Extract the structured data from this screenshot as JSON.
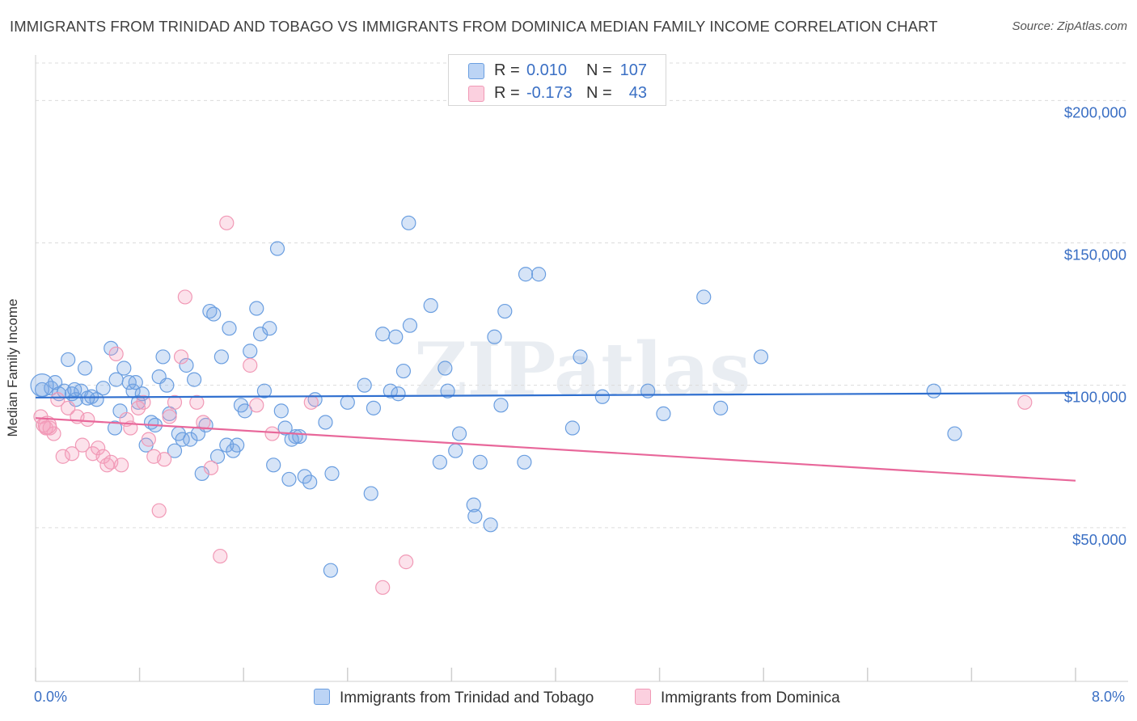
{
  "title": "IMMIGRANTS FROM TRINIDAD AND TOBAGO VS IMMIGRANTS FROM DOMINICA MEDIAN FAMILY INCOME CORRELATION CHART",
  "source": "Source: ZipAtlas.com",
  "watermark": "ZIPatlas",
  "legend": {
    "rows": [
      {
        "r_label": "R =",
        "r_value": "0.010",
        "n_label": "N =",
        "n_value": "107"
      },
      {
        "r_label": "R =",
        "r_value": "-0.173",
        "n_label": "N =",
        "n_value": "43"
      }
    ]
  },
  "x_min_label": "0.0%",
  "x_max_label": "8.0%",
  "colors": {
    "blue": "#6a9ee0",
    "blue_line": "#2f6fcf",
    "pink": "#f199b6",
    "pink_line": "#e8679a",
    "tick_text": "#3a6fc4"
  },
  "chart_data": {
    "type": "scatter",
    "xlabel": "",
    "ylabel": "Median Family Income",
    "xlim": [
      0.0,
      8.0
    ],
    "ylim": [
      0,
      210000
    ],
    "y_ticks": [
      50000,
      100000,
      150000,
      200000
    ],
    "y_tick_labels": [
      "$50,000",
      "$100,000",
      "$150,000",
      "$200,000"
    ],
    "grid": "horizontal dashed",
    "legend_position": "bottom",
    "series": [
      {
        "name": "Immigrants from Trinidad and Tobago",
        "color": "#6a9ee0",
        "trend": {
          "x": [
            0.0,
            8.0
          ],
          "y": [
            95700,
            97300
          ]
        },
        "points": [
          [
            0.05,
            98500
          ],
          [
            0.12,
            99000
          ],
          [
            0.15,
            101000
          ],
          [
            0.18,
            97000
          ],
          [
            0.22,
            98000
          ],
          [
            0.25,
            109000
          ],
          [
            0.28,
            97000
          ],
          [
            0.31,
            95000
          ],
          [
            0.35,
            98000
          ],
          [
            0.38,
            106000
          ],
          [
            0.43,
            96000
          ],
          [
            0.47,
            95000
          ],
          [
            0.52,
            99000
          ],
          [
            0.58,
            113000
          ],
          [
            0.61,
            85000
          ],
          [
            0.62,
            102000
          ],
          [
            0.68,
            106000
          ],
          [
            0.72,
            101000
          ],
          [
            0.75,
            98000
          ],
          [
            0.77,
            101000
          ],
          [
            0.79,
            94000
          ],
          [
            0.82,
            97000
          ],
          [
            0.85,
            79000
          ],
          [
            0.89,
            87000
          ],
          [
            0.92,
            86000
          ],
          [
            0.95,
            103000
          ],
          [
            0.98,
            110000
          ],
          [
            1.01,
            100000
          ],
          [
            1.03,
            90000
          ],
          [
            1.07,
            77000
          ],
          [
            1.1,
            83000
          ],
          [
            1.13,
            81000
          ],
          [
            1.16,
            107000
          ],
          [
            1.19,
            81000
          ],
          [
            1.22,
            102000
          ],
          [
            1.25,
            83000
          ],
          [
            1.28,
            69000
          ],
          [
            1.31,
            86000
          ],
          [
            1.34,
            126000
          ],
          [
            1.37,
            125000
          ],
          [
            1.43,
            110000
          ],
          [
            1.47,
            79000
          ],
          [
            1.49,
            120000
          ],
          [
            1.52,
            77000
          ],
          [
            1.55,
            79000
          ],
          [
            1.58,
            93000
          ],
          [
            1.61,
            91000
          ],
          [
            1.65,
            112000
          ],
          [
            1.7,
            127000
          ],
          [
            1.73,
            118000
          ],
          [
            1.76,
            98000
          ],
          [
            1.8,
            120000
          ],
          [
            1.83,
            72000
          ],
          [
            1.86,
            148000
          ],
          [
            1.89,
            91000
          ],
          [
            1.92,
            85000
          ],
          [
            1.95,
            67000
          ],
          [
            2.0,
            82000
          ],
          [
            2.03,
            82000
          ],
          [
            2.07,
            68000
          ],
          [
            2.11,
            66000
          ],
          [
            2.23,
            87000
          ],
          [
            2.27,
            35000
          ],
          [
            2.28,
            69000
          ],
          [
            2.4,
            94000
          ],
          [
            2.53,
            100000
          ],
          [
            2.58,
            62000
          ],
          [
            2.6,
            92000
          ],
          [
            2.67,
            118000
          ],
          [
            2.73,
            98000
          ],
          [
            2.77,
            117000
          ],
          [
            2.79,
            97000
          ],
          [
            2.83,
            105000
          ],
          [
            2.88,
            121000
          ],
          [
            2.87,
            157000
          ],
          [
            3.04,
            128000
          ],
          [
            3.11,
            73000
          ],
          [
            3.15,
            106000
          ],
          [
            3.17,
            98000
          ],
          [
            3.23,
            77000
          ],
          [
            3.26,
            83000
          ],
          [
            3.37,
            58000
          ],
          [
            3.38,
            54000
          ],
          [
            3.42,
            73000
          ],
          [
            3.5,
            51000
          ],
          [
            3.53,
            117000
          ],
          [
            3.58,
            93000
          ],
          [
            3.61,
            126000
          ],
          [
            3.76,
            73000
          ],
          [
            3.77,
            139000
          ],
          [
            3.87,
            139000
          ],
          [
            4.13,
            85000
          ],
          [
            4.19,
            110000
          ],
          [
            4.36,
            96000
          ],
          [
            4.71,
            98000
          ],
          [
            4.83,
            90000
          ],
          [
            5.14,
            131000
          ],
          [
            5.27,
            92000
          ],
          [
            5.58,
            110000
          ],
          [
            6.91,
            98000
          ],
          [
            7.07,
            83000
          ],
          [
            1.97,
            81000
          ],
          [
            0.4,
            95500
          ],
          [
            0.65,
            91000
          ],
          [
            1.4,
            75000
          ],
          [
            2.15,
            95000
          ],
          [
            0.3,
            98500
          ]
        ]
      },
      {
        "name": "Immigrants from Dominica",
        "color": "#f199b6",
        "trend": {
          "x": [
            0.0,
            8.0
          ],
          "y": [
            88500,
            66500
          ]
        },
        "points": [
          [
            0.04,
            89000
          ],
          [
            0.08,
            85000
          ],
          [
            0.11,
            85000
          ],
          [
            0.14,
            83000
          ],
          [
            0.17,
            95000
          ],
          [
            0.21,
            75000
          ],
          [
            0.25,
            92000
          ],
          [
            0.28,
            76000
          ],
          [
            0.32,
            89000
          ],
          [
            0.36,
            79000
          ],
          [
            0.4,
            88000
          ],
          [
            0.44,
            76000
          ],
          [
            0.48,
            78000
          ],
          [
            0.52,
            75000
          ],
          [
            0.55,
            72000
          ],
          [
            0.58,
            73000
          ],
          [
            0.62,
            111000
          ],
          [
            0.66,
            72000
          ],
          [
            0.7,
            88000
          ],
          [
            0.73,
            85000
          ],
          [
            0.79,
            92000
          ],
          [
            0.83,
            94000
          ],
          [
            0.87,
            81000
          ],
          [
            0.91,
            75000
          ],
          [
            0.95,
            56000
          ],
          [
            0.99,
            74000
          ],
          [
            1.03,
            89000
          ],
          [
            1.07,
            94000
          ],
          [
            1.12,
            110000
          ],
          [
            1.15,
            131000
          ],
          [
            1.24,
            94000
          ],
          [
            1.29,
            87000
          ],
          [
            1.35,
            71000
          ],
          [
            1.42,
            40000
          ],
          [
            1.47,
            157000
          ],
          [
            1.65,
            107000
          ],
          [
            1.7,
            93000
          ],
          [
            1.82,
            83000
          ],
          [
            2.12,
            94000
          ],
          [
            2.67,
            29000
          ],
          [
            2.85,
            38000
          ],
          [
            7.61,
            94000
          ],
          [
            0.06,
            86000
          ]
        ]
      }
    ]
  }
}
